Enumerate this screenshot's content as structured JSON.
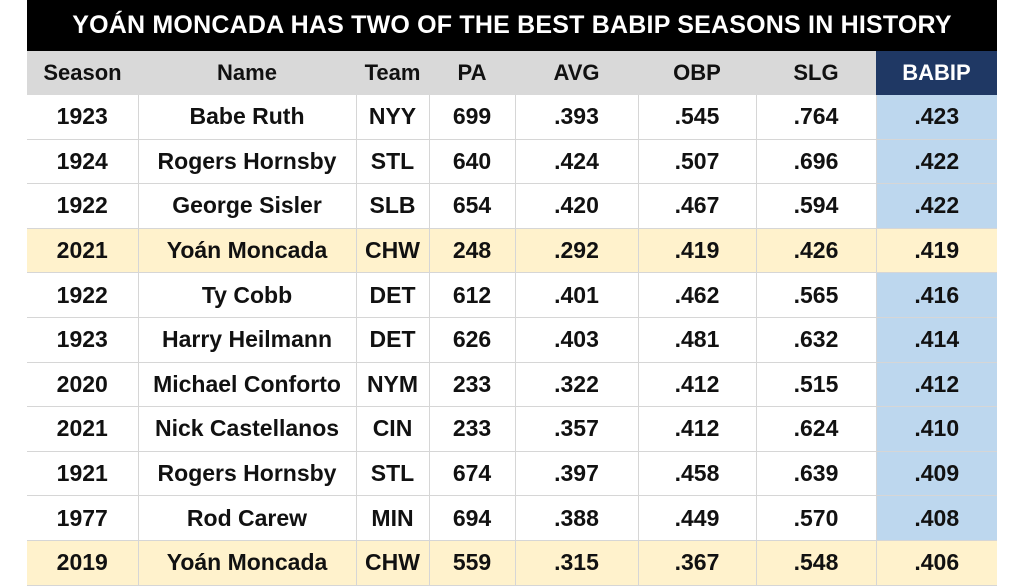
{
  "title": "YOÁN MONCADA HAS TWO OF THE BEST BABIP SEASONS IN HISTORY",
  "headers": [
    "Season",
    "Name",
    "Team",
    "PA",
    "AVG",
    "OBP",
    "SLG",
    "BABIP"
  ],
  "rows": [
    {
      "season": "1923",
      "name": "Babe Ruth",
      "team": "NYY",
      "pa": "699",
      "avg": ".393",
      "obp": ".545",
      "slg": ".764",
      "babip": ".423",
      "highlight": false
    },
    {
      "season": "1924",
      "name": "Rogers Hornsby",
      "team": "STL",
      "pa": "640",
      "avg": ".424",
      "obp": ".507",
      "slg": ".696",
      "babip": ".422",
      "highlight": false
    },
    {
      "season": "1922",
      "name": "George Sisler",
      "team": "SLB",
      "pa": "654",
      "avg": ".420",
      "obp": ".467",
      "slg": ".594",
      "babip": ".422",
      "highlight": false
    },
    {
      "season": "2021",
      "name": "Yoán Moncada",
      "team": "CHW",
      "pa": "248",
      "avg": ".292",
      "obp": ".419",
      "slg": ".426",
      "babip": ".419",
      "highlight": true
    },
    {
      "season": "1922",
      "name": "Ty Cobb",
      "team": "DET",
      "pa": "612",
      "avg": ".401",
      "obp": ".462",
      "slg": ".565",
      "babip": ".416",
      "highlight": false
    },
    {
      "season": "1923",
      "name": "Harry Heilmann",
      "team": "DET",
      "pa": "626",
      "avg": ".403",
      "obp": ".481",
      "slg": ".632",
      "babip": ".414",
      "highlight": false
    },
    {
      "season": "2020",
      "name": "Michael Conforto",
      "team": "NYM",
      "pa": "233",
      "avg": ".322",
      "obp": ".412",
      "slg": ".515",
      "babip": ".412",
      "highlight": false
    },
    {
      "season": "2021",
      "name": "Nick Castellanos",
      "team": "CIN",
      "pa": "233",
      "avg": ".357",
      "obp": ".412",
      "slg": ".624",
      "babip": ".410",
      "highlight": false
    },
    {
      "season": "1921",
      "name": "Rogers Hornsby",
      "team": "STL",
      "pa": "674",
      "avg": ".397",
      "obp": ".458",
      "slg": ".639",
      "babip": ".409",
      "highlight": false
    },
    {
      "season": "1977",
      "name": "Rod Carew",
      "team": "MIN",
      "pa": "694",
      "avg": ".388",
      "obp": ".449",
      "slg": ".570",
      "babip": ".408",
      "highlight": false
    },
    {
      "season": "2019",
      "name": "Yoán Moncada",
      "team": "CHW",
      "pa": "559",
      "avg": ".315",
      "obp": ".367",
      "slg": ".548",
      "babip": ".406",
      "highlight": true
    }
  ],
  "colors": {
    "title_bg": "#000000",
    "header_bg": "#d9d9d9",
    "babip_header_bg": "#1f3864",
    "babip_cell_bg": "#bdd7ee",
    "highlight_row_bg": "#fff2cc"
  }
}
